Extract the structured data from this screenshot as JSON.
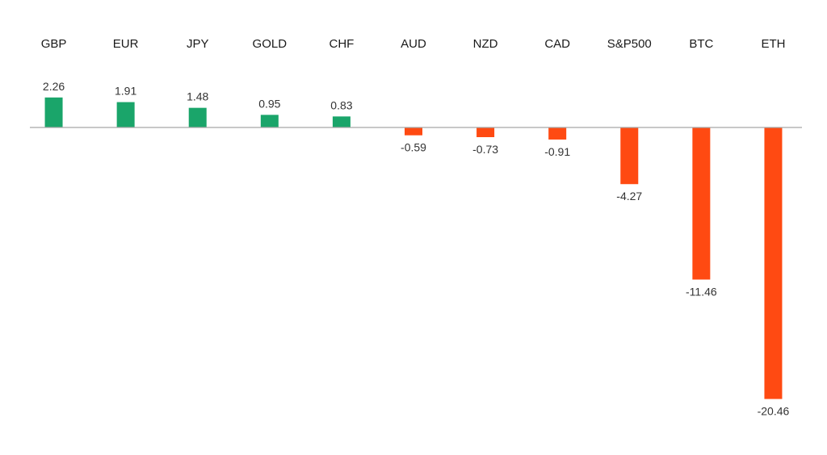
{
  "chart_data": {
    "type": "bar",
    "categories": [
      "GBP",
      "EUR",
      "JPY",
      "GOLD",
      "CHF",
      "AUD",
      "NZD",
      "CAD",
      "S&P500",
      "BTC",
      "ETH"
    ],
    "values": [
      2.26,
      1.91,
      1.48,
      0.95,
      0.83,
      -0.59,
      -0.73,
      -0.91,
      -4.27,
      -11.46,
      -20.46
    ],
    "value_labels": [
      "2.26",
      "1.91",
      "1.48",
      "0.95",
      "0.83",
      "-0.59",
      "-0.73",
      "-0.91",
      "-4.27",
      "-11.46",
      "-20.46"
    ],
    "title": "",
    "xlabel": "",
    "ylabel": "",
    "ylim": [
      -20.46,
      2.26
    ],
    "grid": false,
    "legend": "none",
    "category_axis_position": "top",
    "colors": {
      "positive": "#1aa56a",
      "negative": "#ff4a12",
      "axis": "#a6a6a6"
    }
  }
}
